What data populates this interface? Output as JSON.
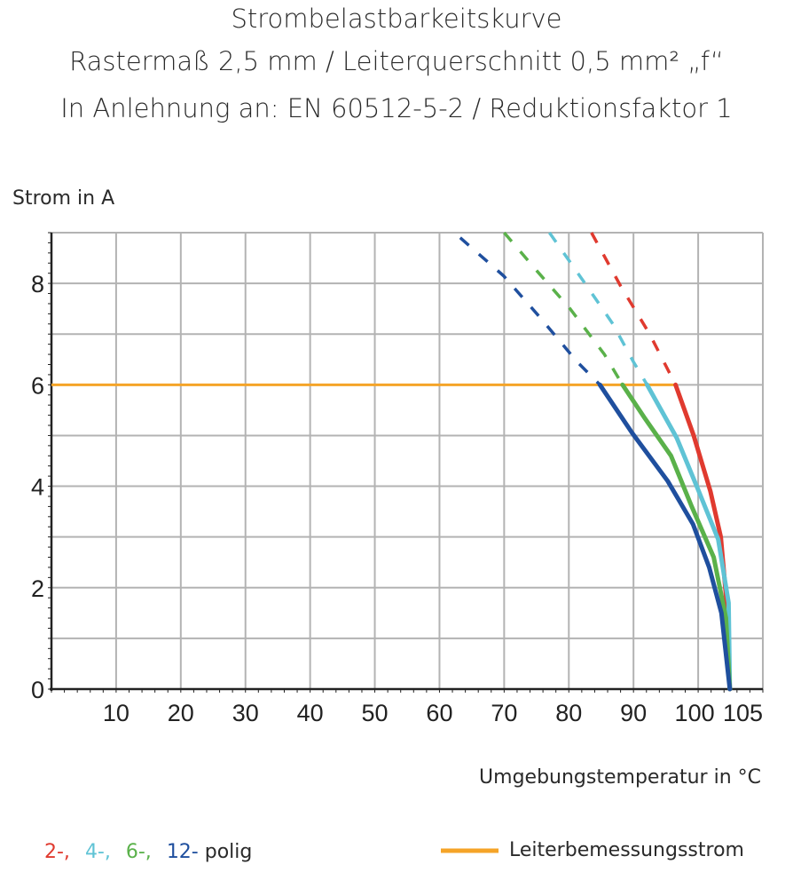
{
  "chart_data": {
    "type": "line",
    "title": [
      "Strombelastbarkeitskurve",
      "Rastermaß 2,5 mm / Leiterquerschnitt 0,5 mm² „f“",
      "In Anlehnung an: EN 60512-5-2 / Reduktionsfaktor 1"
    ],
    "xlabel": "Umgebungstemperatur in °C",
    "ylabel": "Strom in A",
    "xlim": [
      0,
      110
    ],
    "ylim": [
      0,
      9
    ],
    "x_ticks": [
      10,
      20,
      30,
      40,
      50,
      60,
      70,
      80,
      90,
      100,
      105
    ],
    "y_ticks": [
      0,
      2,
      4,
      6,
      8
    ],
    "grid": true,
    "series": [
      {
        "name": "2-",
        "color": "#e03a2f",
        "solid": [
          [
            96.5,
            6
          ],
          [
            99.3,
            5.0
          ],
          [
            101.9,
            3.9
          ],
          [
            103.5,
            3.0
          ],
          [
            104.4,
            1.7
          ],
          [
            104.9,
            0
          ]
        ],
        "dashed": [
          [
            83.5,
            9
          ],
          [
            88,
            7.95
          ],
          [
            92.5,
            7
          ],
          [
            96.5,
            6
          ]
        ]
      },
      {
        "name": "4-",
        "color": "#5fc3d5",
        "solid": [
          [
            92.1,
            6
          ],
          [
            96.7,
            4.95
          ],
          [
            100.1,
            3.9
          ],
          [
            103.1,
            2.95
          ],
          [
            104.7,
            1.7
          ],
          [
            104.9,
            0
          ]
        ],
        "dashed": [
          [
            77,
            9
          ],
          [
            82.5,
            8.0
          ],
          [
            86.8,
            7.2
          ],
          [
            90,
            6.45
          ],
          [
            92.1,
            6
          ]
        ]
      },
      {
        "name": "6-",
        "color": "#5ab14a",
        "solid": [
          [
            88.3,
            6
          ],
          [
            91.7,
            5.35
          ],
          [
            95.8,
            4.6
          ],
          [
            99,
            3.6
          ],
          [
            102.4,
            2.6
          ],
          [
            104.3,
            1.4
          ],
          [
            104.9,
            0
          ]
        ],
        "dashed": [
          [
            70,
            9
          ],
          [
            74.7,
            8.3
          ],
          [
            80.2,
            7.5
          ],
          [
            85.5,
            6.6
          ],
          [
            88.3,
            6
          ]
        ]
      },
      {
        "name": "12-",
        "color": "#1f4f9e",
        "solid": [
          [
            84.8,
            6
          ],
          [
            89.8,
            5.05
          ],
          [
            95.3,
            4.1
          ],
          [
            99.2,
            3.25
          ],
          [
            101.7,
            2.4
          ],
          [
            103.6,
            1.5
          ],
          [
            104.9,
            0
          ]
        ],
        "dashed": [
          [
            63.2,
            8.9
          ],
          [
            69.9,
            8.15
          ],
          [
            75.4,
            7.35
          ],
          [
            81.3,
            6.45
          ],
          [
            84.8,
            6
          ]
        ]
      }
    ],
    "reference_line": {
      "name": "Leiterbemessungsstrom",
      "y": 6,
      "x_range": [
        0,
        96.5
      ],
      "color": "#f5a428"
    },
    "legend": {
      "placement": "bottom",
      "series_suffix": "polig",
      "labels": [
        "2-,",
        "4-,",
        "6-,",
        "12-"
      ]
    }
  }
}
